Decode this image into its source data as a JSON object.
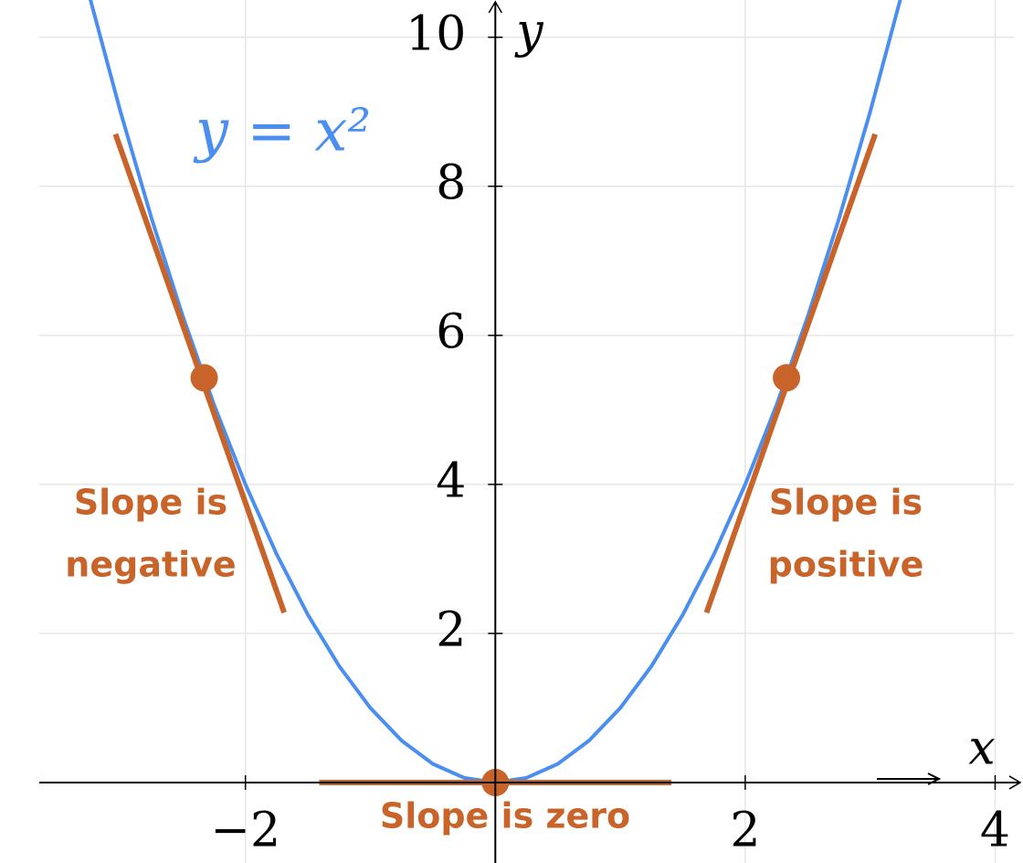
{
  "chart_data": {
    "type": "line",
    "curve_label": "y = x²",
    "x_label": "x",
    "y_label": "y",
    "xlim": [
      -3.65,
      4.15
    ],
    "ylim": [
      -1.08,
      10.5
    ],
    "xticks": [
      {
        "value": -2,
        "label": "−2"
      },
      2,
      4
    ],
    "yticks": [
      2,
      4,
      6,
      8,
      10
    ],
    "grid": true,
    "curve": {
      "color": "#4a8ef0",
      "x": [
        -3.25,
        -3,
        -2.75,
        -2.5,
        -2.25,
        -2,
        -1.75,
        -1.5,
        -1.25,
        -1,
        -0.75,
        -0.5,
        -0.25,
        0,
        0.25,
        0.5,
        0.75,
        1,
        1.25,
        1.5,
        1.75,
        2,
        2.25,
        2.5,
        2.75,
        3,
        3.25
      ],
      "values": [
        10.5625,
        9,
        7.5625,
        6.25,
        5.0625,
        4,
        3.0625,
        2.25,
        1.5625,
        1,
        0.5625,
        0.25,
        0.0625,
        0,
        0.0625,
        0.25,
        0.5625,
        1,
        1.5625,
        2.25,
        3.0625,
        4,
        5.0625,
        6.25,
        7.5625,
        9,
        10.5625
      ]
    },
    "tangents": [
      {
        "color": "#c8642a",
        "x": [
          -3.04,
          -1.69
        ],
        "values": [
          8.7,
          2.28
        ]
      },
      {
        "color": "#c8642a",
        "x": [
          1.69,
          3.04
        ],
        "values": [
          2.28,
          8.7
        ]
      },
      {
        "color": "#c8642a",
        "x": [
          -1.41,
          1.41
        ],
        "values": [
          0,
          0
        ]
      }
    ],
    "points": {
      "color": "#c8642a",
      "x": [
        -2.33,
        2.33,
        0
      ],
      "values": [
        5.43,
        5.43,
        0
      ]
    },
    "annotations": [
      [
        "Slope is",
        "negative"
      ],
      [
        "Slope is",
        "positive"
      ],
      [
        "Slope is zero"
      ]
    ]
  }
}
